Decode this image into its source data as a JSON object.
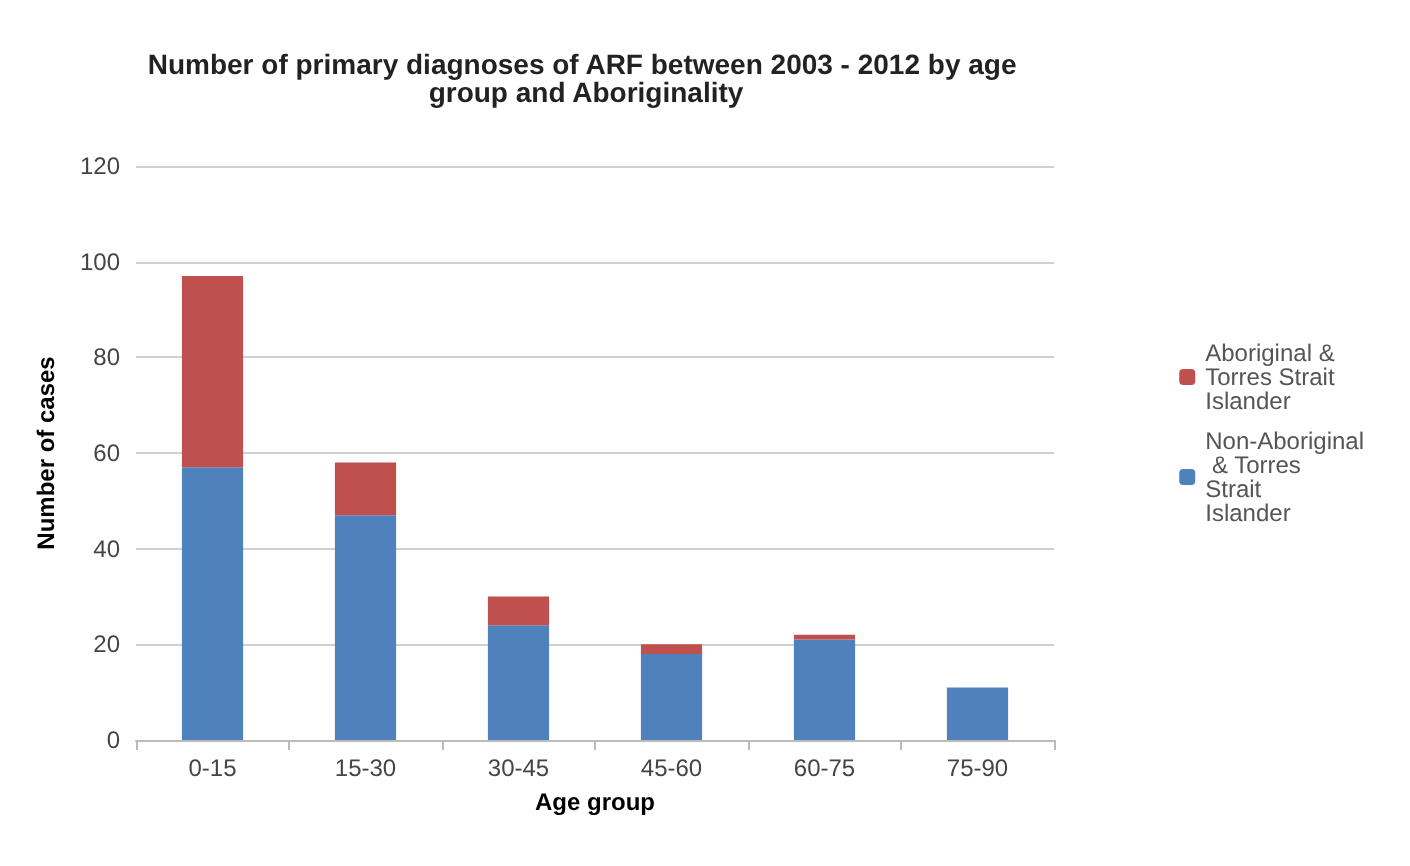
{
  "chart_data": {
    "type": "bar",
    "title": "Number of primary diagnoses of ARF between 2003 - 2012 by age group and Aboriginality",
    "xlabel": "Age group",
    "ylabel": "Number of cases",
    "categories": [
      "0-15",
      "15-30",
      "30-45",
      "45-60",
      "60-75",
      "75-90"
    ],
    "series": [
      {
        "name": "Non-Aboriginal & Torres Strait Islander",
        "color": "#4f81bd",
        "values": [
          57,
          47,
          24,
          18,
          21,
          11
        ]
      },
      {
        "name": "Aboriginal & Torres Strait Islander",
        "color": "#c0504d",
        "values": [
          40,
          11,
          6,
          2,
          1,
          0
        ]
      }
    ],
    "stacked": true,
    "ylim": [
      0,
      120
    ],
    "yticks": [
      0,
      20,
      40,
      60,
      80,
      100,
      120
    ],
    "grid": "y",
    "legend": "right"
  }
}
